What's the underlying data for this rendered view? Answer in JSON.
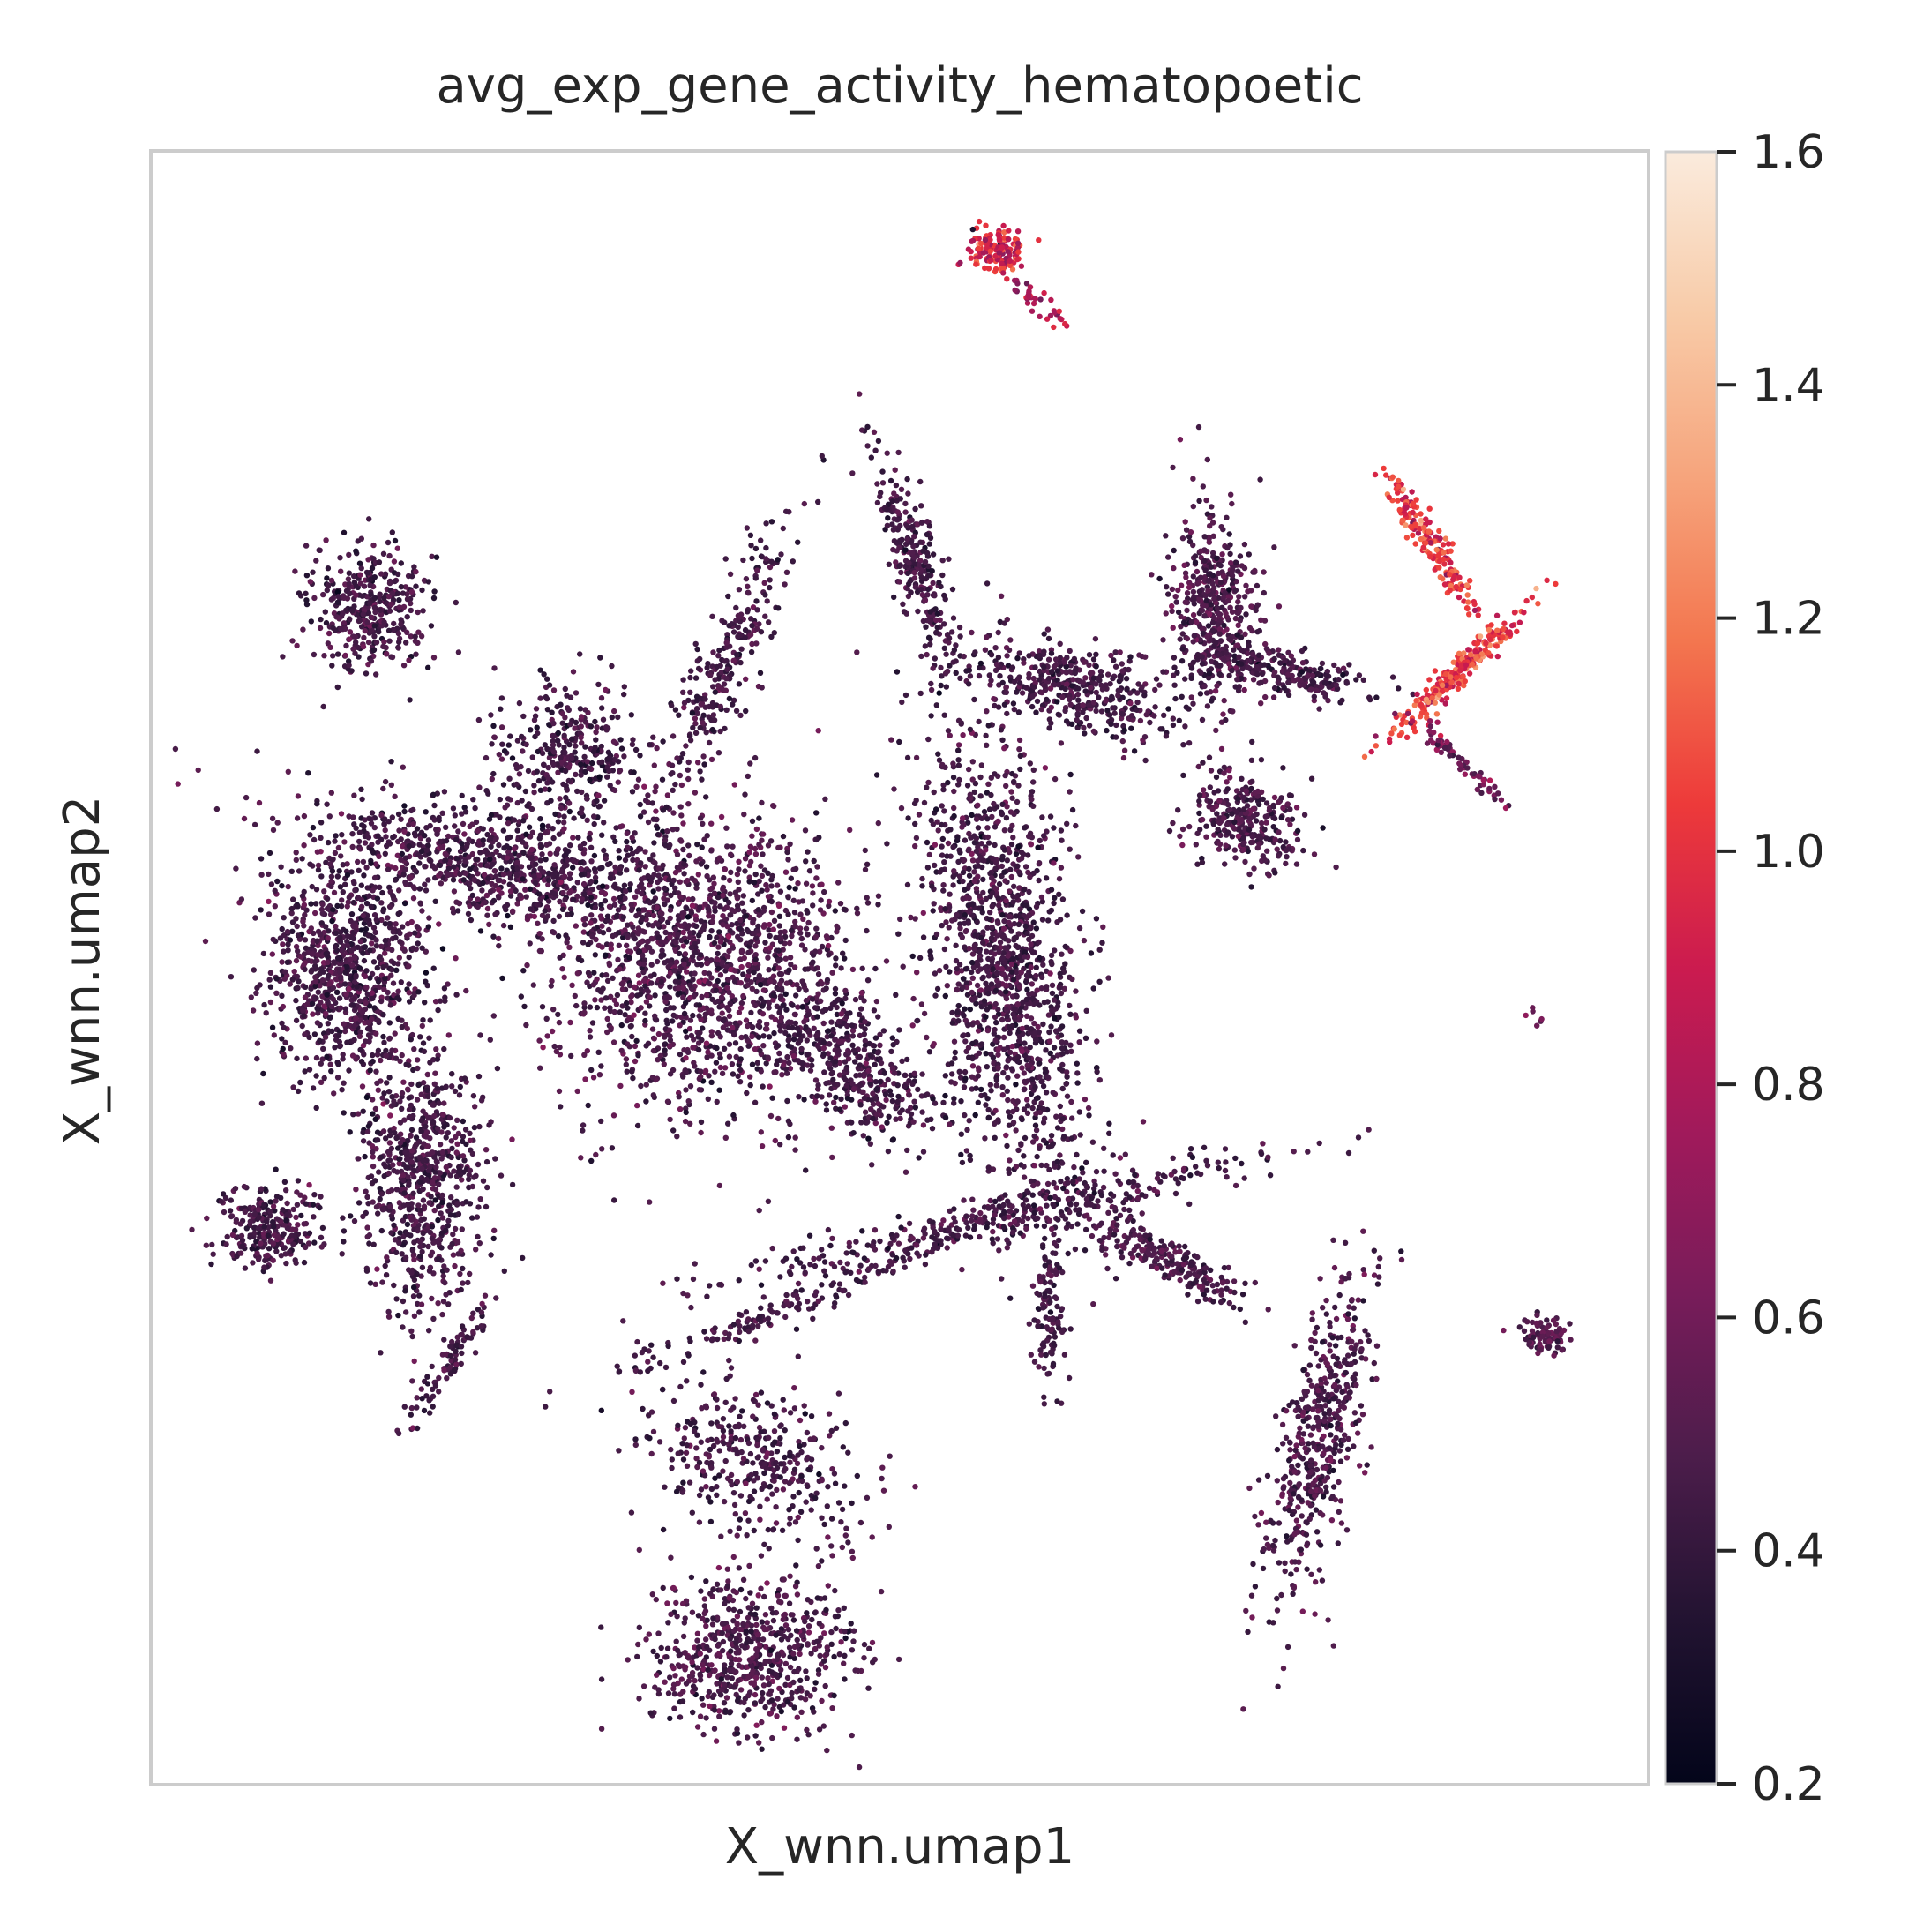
{
  "chart_data": {
    "type": "scatter",
    "title": "avg_exp_gene_activity_hematopoetic",
    "xlabel": "X_wnn.umap1",
    "ylabel": "X_wnn.umap2",
    "grid": false,
    "legend": "colorbar-right",
    "colorbar": {
      "min": 0.2,
      "max": 1.6,
      "ticks": [
        {
          "value": 0.2,
          "label": "0.2"
        },
        {
          "value": 0.4,
          "label": "0.4"
        },
        {
          "value": 0.6,
          "label": "0.6"
        },
        {
          "value": 0.8,
          "label": "0.8"
        },
        {
          "value": 1.0,
          "label": "1.0"
        },
        {
          "value": 1.2,
          "label": "1.2"
        },
        {
          "value": 1.4,
          "label": "1.4"
        },
        {
          "value": 1.6,
          "label": "1.6"
        }
      ],
      "colors": [
        "#03051a",
        "#221331",
        "#4c1d4b",
        "#781c5a",
        "#a11a5b",
        "#cb1b4f",
        "#ed3a3a",
        "#f3764f",
        "#f6a47c",
        "#f8cba8",
        "#faebdd"
      ]
    },
    "clusters": [
      {
        "cx": 0.565,
        "cy": 0.06,
        "rx": 0.02,
        "ry": 0.016,
        "rot": 0,
        "density": 140,
        "mean": 0.95,
        "spread": 0.3
      },
      {
        "cx": 0.59,
        "cy": 0.09,
        "rx": 0.03,
        "ry": 0.006,
        "rot": 35,
        "density": 40,
        "mean": 0.8,
        "spread": 0.2
      },
      {
        "cx": 0.145,
        "cy": 0.28,
        "rx": 0.04,
        "ry": 0.04,
        "rot": 0,
        "density": 380,
        "mean": 0.45,
        "spread": 0.12
      },
      {
        "cx": 0.28,
        "cy": 0.37,
        "rx": 0.05,
        "ry": 0.045,
        "rot": 0,
        "density": 320,
        "mean": 0.45,
        "spread": 0.12
      },
      {
        "cx": 0.38,
        "cy": 0.32,
        "rx": 0.02,
        "ry": 0.1,
        "rot": 25,
        "density": 280,
        "mean": 0.45,
        "spread": 0.12
      },
      {
        "cx": 0.13,
        "cy": 0.5,
        "rx": 0.055,
        "ry": 0.07,
        "rot": 0,
        "density": 900,
        "mean": 0.45,
        "spread": 0.13
      },
      {
        "cx": 0.24,
        "cy": 0.44,
        "rx": 0.13,
        "ry": 0.035,
        "rot": 12,
        "density": 900,
        "mean": 0.45,
        "spread": 0.12
      },
      {
        "cx": 0.37,
        "cy": 0.5,
        "rx": 0.1,
        "ry": 0.09,
        "rot": 0,
        "density": 1500,
        "mean": 0.47,
        "spread": 0.13
      },
      {
        "cx": 0.47,
        "cy": 0.56,
        "rx": 0.07,
        "ry": 0.03,
        "rot": 40,
        "density": 400,
        "mean": 0.45,
        "spread": 0.12
      },
      {
        "cx": 0.18,
        "cy": 0.63,
        "rx": 0.04,
        "ry": 0.08,
        "rot": 0,
        "density": 700,
        "mean": 0.45,
        "spread": 0.12
      },
      {
        "cx": 0.08,
        "cy": 0.66,
        "rx": 0.035,
        "ry": 0.025,
        "rot": 0,
        "density": 260,
        "mean": 0.45,
        "spread": 0.12
      },
      {
        "cx": 0.2,
        "cy": 0.74,
        "rx": 0.05,
        "ry": 0.008,
        "rot": -55,
        "density": 90,
        "mean": 0.45,
        "spread": 0.1
      },
      {
        "cx": 0.51,
        "cy": 0.25,
        "rx": 0.015,
        "ry": 0.07,
        "rot": -20,
        "density": 260,
        "mean": 0.45,
        "spread": 0.12
      },
      {
        "cx": 0.57,
        "cy": 0.5,
        "rx": 0.05,
        "ry": 0.15,
        "rot": -10,
        "density": 1400,
        "mean": 0.45,
        "spread": 0.12
      },
      {
        "cx": 0.62,
        "cy": 0.33,
        "rx": 0.07,
        "ry": 0.025,
        "rot": 15,
        "density": 420,
        "mean": 0.45,
        "spread": 0.12
      },
      {
        "cx": 0.71,
        "cy": 0.28,
        "rx": 0.03,
        "ry": 0.06,
        "rot": 0,
        "density": 480,
        "mean": 0.47,
        "spread": 0.13
      },
      {
        "cx": 0.76,
        "cy": 0.32,
        "rx": 0.05,
        "ry": 0.014,
        "rot": 10,
        "density": 200,
        "mean": 0.45,
        "spread": 0.12
      },
      {
        "cx": 0.73,
        "cy": 0.41,
        "rx": 0.04,
        "ry": 0.03,
        "rot": 30,
        "density": 300,
        "mean": 0.47,
        "spread": 0.12
      },
      {
        "cx": 0.873,
        "cy": 0.32,
        "rx": 0.06,
        "ry": 0.008,
        "rot": -40,
        "density": 260,
        "mean": 1.05,
        "spread": 0.25
      },
      {
        "cx": 0.855,
        "cy": 0.24,
        "rx": 0.05,
        "ry": 0.008,
        "rot": 55,
        "density": 180,
        "mean": 1.0,
        "spread": 0.25
      },
      {
        "cx": 0.87,
        "cy": 0.37,
        "rx": 0.05,
        "ry": 0.006,
        "rot": 40,
        "density": 70,
        "mean": 0.6,
        "spread": 0.2
      },
      {
        "cx": 0.58,
        "cy": 0.65,
        "rx": 0.18,
        "ry": 0.014,
        "rot": -12,
        "density": 380,
        "mean": 0.45,
        "spread": 0.12
      },
      {
        "cx": 0.68,
        "cy": 0.68,
        "rx": 0.06,
        "ry": 0.012,
        "rot": 25,
        "density": 220,
        "mean": 0.47,
        "spread": 0.12
      },
      {
        "cx": 0.78,
        "cy": 0.79,
        "rx": 0.025,
        "ry": 0.1,
        "rot": 15,
        "density": 520,
        "mean": 0.47,
        "spread": 0.13
      },
      {
        "cx": 0.6,
        "cy": 0.71,
        "rx": 0.012,
        "ry": 0.045,
        "rot": 0,
        "density": 110,
        "mean": 0.45,
        "spread": 0.1
      },
      {
        "cx": 0.42,
        "cy": 0.71,
        "rx": 0.12,
        "ry": 0.01,
        "rot": -20,
        "density": 160,
        "mean": 0.45,
        "spread": 0.1
      },
      {
        "cx": 0.4,
        "cy": 0.8,
        "rx": 0.08,
        "ry": 0.045,
        "rot": 20,
        "density": 380,
        "mean": 0.45,
        "spread": 0.12
      },
      {
        "cx": 0.4,
        "cy": 0.92,
        "rx": 0.07,
        "ry": 0.05,
        "rot": 0,
        "density": 650,
        "mean": 0.47,
        "spread": 0.13
      },
      {
        "cx": 0.93,
        "cy": 0.725,
        "rx": 0.015,
        "ry": 0.01,
        "rot": 0,
        "density": 90,
        "mean": 0.5,
        "spread": 0.12
      },
      {
        "cx": 0.925,
        "cy": 0.53,
        "rx": 0.005,
        "ry": 0.005,
        "rot": 0,
        "density": 6,
        "mean": 0.6,
        "spread": 0.1
      }
    ]
  }
}
